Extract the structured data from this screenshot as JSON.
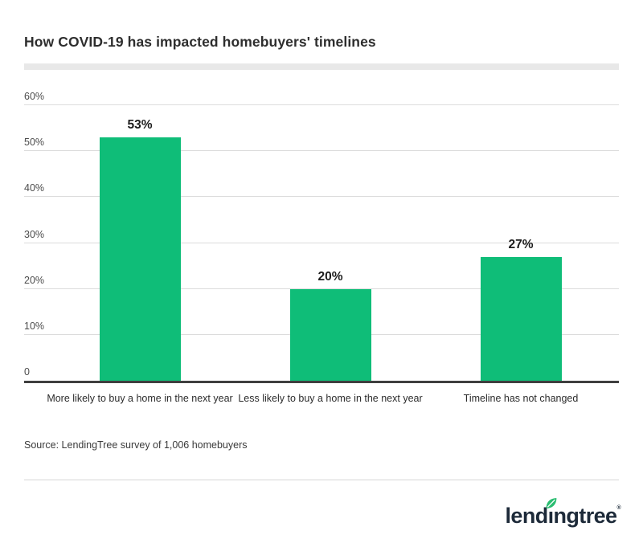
{
  "header": {
    "title": "How COVID-19 has impacted homebuyers' timelines"
  },
  "accent": {
    "strip_color": "#e8e8e8"
  },
  "chart_data": {
    "type": "bar",
    "title": "How COVID-19 has impacted homebuyers' timelines",
    "categories": [
      "More likely to buy a home in the next year",
      "Less likely to buy a home in the next year",
      "Timeline has not changed"
    ],
    "values": [
      53,
      20,
      27
    ],
    "value_labels": [
      "53%",
      "20%",
      "27%"
    ],
    "yticks": [
      {
        "label": "60%",
        "value": 60
      },
      {
        "label": "50%",
        "value": 50
      },
      {
        "label": "40%",
        "value": 40
      },
      {
        "label": "30%",
        "value": 30
      },
      {
        "label": "20%",
        "value": 20
      },
      {
        "label": "10%",
        "value": 10
      },
      {
        "label": "0",
        "value": 0
      }
    ],
    "ylim": [
      0,
      60
    ],
    "grid": true,
    "legend": false,
    "xlabel": "",
    "ylabel": "",
    "bar_color": "#0fbd78",
    "gridline_color": "#dcdcdc",
    "baseline_color": "#3f3f3f"
  },
  "footer": {
    "source": "Source: LendingTree survey of 1,006 homebuyers"
  },
  "logo": {
    "brand_prefix": "lend",
    "brand_dotless_i": "ı",
    "brand_suffix": "ngtree",
    "registered_mark": "®",
    "wordmark_color": "#1d2a39",
    "leaf_color": "#2bbd71"
  }
}
